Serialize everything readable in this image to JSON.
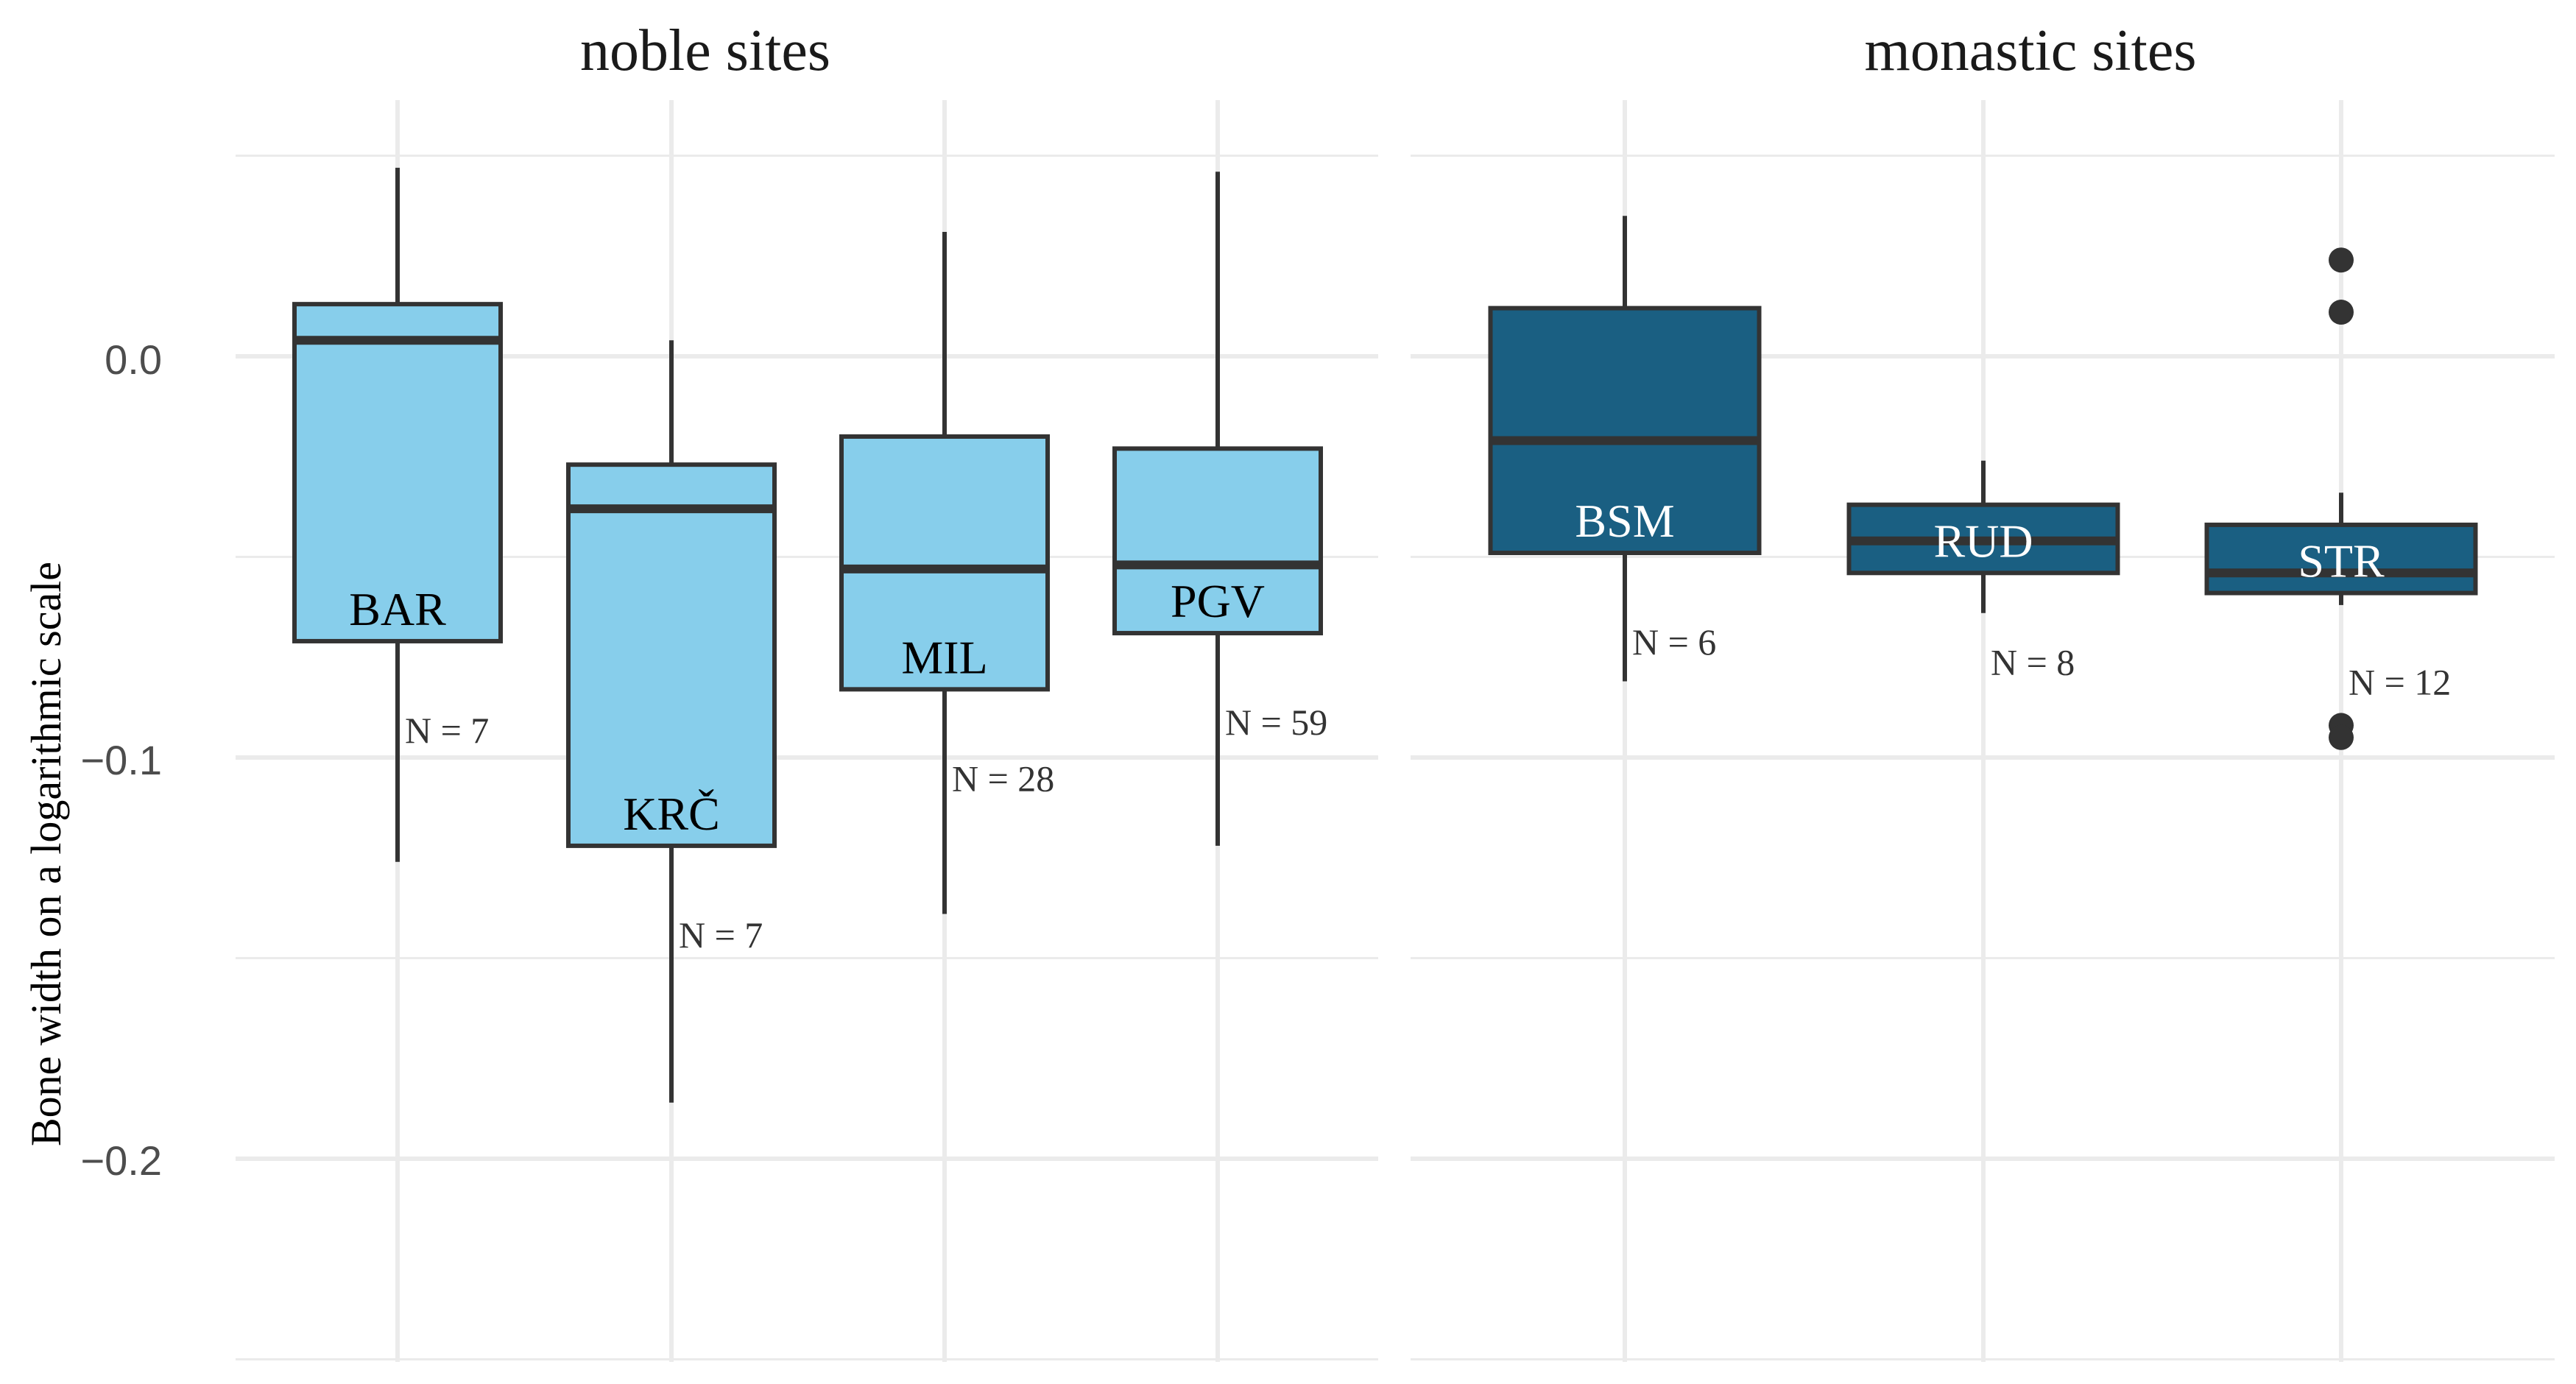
{
  "chart_data": {
    "type": "box",
    "ylabel": "Bone width on a logarithmic scale",
    "xlabel": "",
    "ylim": [
      -0.25,
      0.06
    ],
    "yticks": [
      0.0,
      -0.1,
      -0.2
    ],
    "ytick_labels": [
      "0.0",
      "−0.1",
      "−0.2"
    ],
    "grid": true,
    "colors": {
      "noble": "#87ceeb",
      "monastic": "#1a5f82"
    },
    "facets": [
      {
        "title": "noble sites",
        "group": "noble",
        "boxes": [
          {
            "label": "BAR",
            "n_label": "N = 7",
            "whisker_low": -0.126,
            "q1": -0.071,
            "median": 0.004,
            "q3": 0.013,
            "whisker_high": 0.047,
            "outliers": []
          },
          {
            "label": "KRČ",
            "n_label": "N = 7",
            "whisker_low": -0.186,
            "q1": -0.122,
            "median": -0.038,
            "q3": -0.027,
            "whisker_high": 0.004,
            "outliers": []
          },
          {
            "label": "MIL",
            "n_label": "N = 28",
            "whisker_low": -0.139,
            "q1": -0.083,
            "median": -0.053,
            "q3": -0.02,
            "whisker_high": 0.031,
            "outliers": []
          },
          {
            "label": "PGV",
            "n_label": "N = 59",
            "whisker_low": -0.122,
            "q1": -0.069,
            "median": -0.052,
            "q3": -0.023,
            "whisker_high": 0.046,
            "outliers": []
          }
        ]
      },
      {
        "title": "monastic sites",
        "group": "monastic",
        "boxes": [
          {
            "label": "BSM",
            "n_label": "N = 6",
            "whisker_low": -0.081,
            "q1": -0.049,
            "median": -0.021,
            "q3": 0.012,
            "whisker_high": 0.035,
            "outliers": []
          },
          {
            "label": "RUD",
            "n_label": "N = 8",
            "whisker_low": -0.064,
            "q1": -0.054,
            "median": -0.046,
            "q3": -0.037,
            "whisker_high": -0.026,
            "outliers": []
          },
          {
            "label": "STR",
            "n_label": "N = 12",
            "whisker_low": -0.062,
            "q1": -0.059,
            "median": -0.054,
            "q3": -0.042,
            "whisker_high": -0.034,
            "outliers": [
              0.024,
              0.011,
              -0.092,
              -0.095
            ]
          }
        ]
      }
    ]
  }
}
